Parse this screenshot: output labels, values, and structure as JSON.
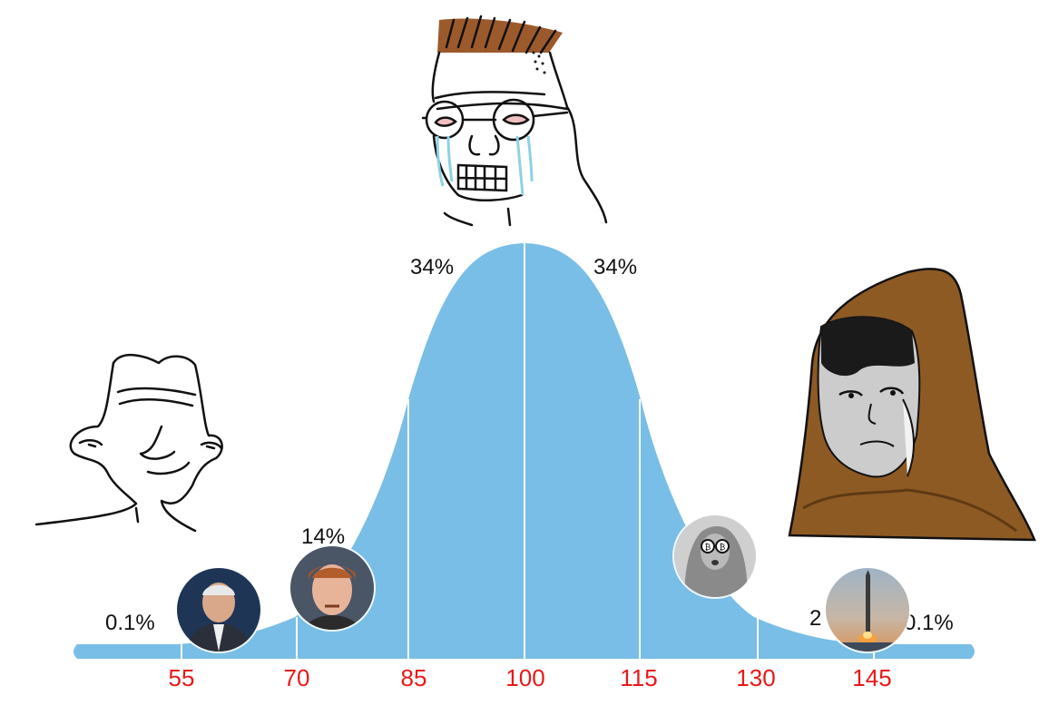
{
  "percent_labels": {
    "far_left": "0.1%",
    "left_mid": "14%",
    "center_left": "34%",
    "center_right": "34%",
    "right_mid_partial": "2",
    "far_right": "0.1%"
  },
  "iq_ticks": [
    "55",
    "70",
    "85",
    "100",
    "115",
    "130",
    "145"
  ],
  "colors": {
    "curve_fill": "#79bee6",
    "tick_text": "#e81919",
    "label_text": "#111111",
    "divider": "#ffffff"
  },
  "icons": {
    "left_character": "wojak-simple-icon",
    "center_character": "crying-nerd-wojak-icon",
    "right_character": "hooded-monk-wojak-icon",
    "avatar_1": "man-in-suit-portrait-icon",
    "avatar_2": "red-haired-man-portrait-icon",
    "avatar_3": "bitcoin-glasses-portrait-icon",
    "avatar_4": "rocket-launch-icon"
  }
}
